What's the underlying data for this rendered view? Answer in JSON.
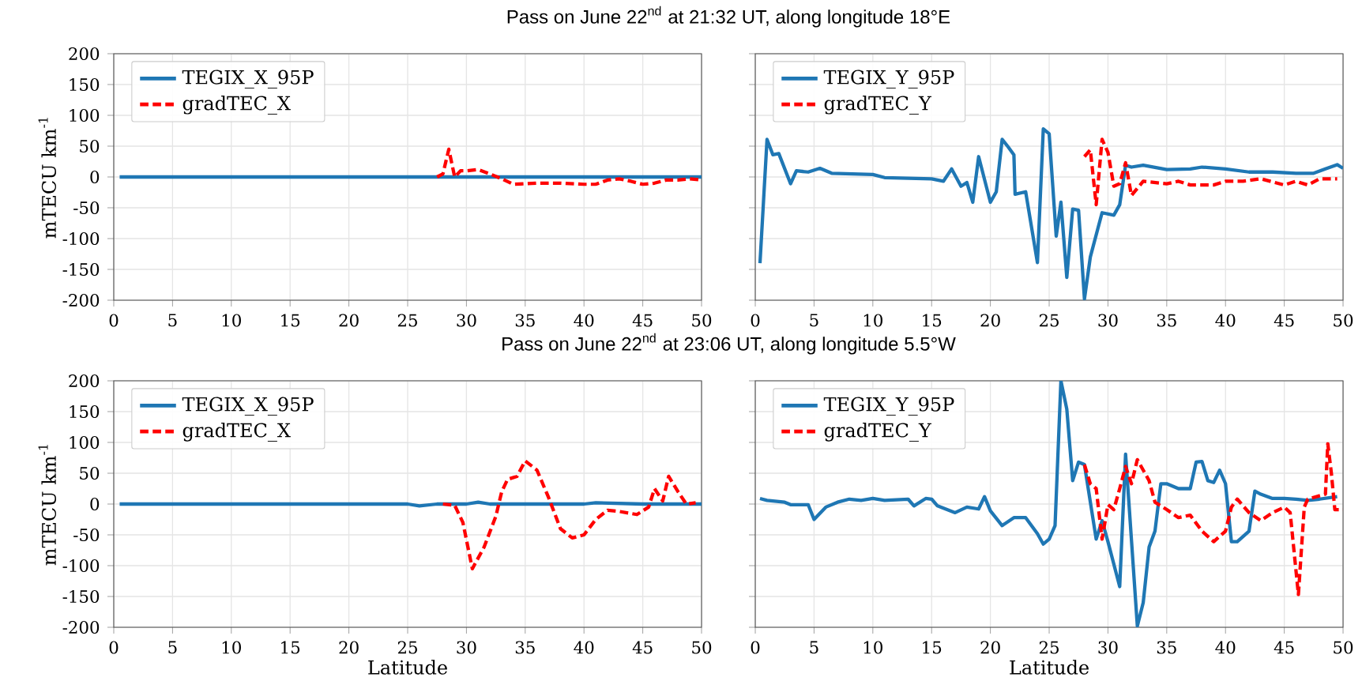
{
  "chart_data": [
    {
      "type": "line",
      "title": "Pass on June 22$^{nd}$ at 21:32 UT, along longitude 18°E",
      "ylabel": "mTECU km$^{-1}$",
      "xlim": [
        0,
        50
      ],
      "ylim": [
        -200,
        200
      ],
      "xticks": [
        0,
        5,
        10,
        15,
        20,
        25,
        30,
        35,
        40,
        45,
        50
      ],
      "yticks": [
        -200,
        -150,
        -100,
        -50,
        0,
        50,
        100,
        150,
        200
      ],
      "grid": true,
      "legend": "top left",
      "series": [
        {
          "name": "TEGIX_X_95P",
          "color": "#1f77b4",
          "line_style": "solid",
          "x": [
            0.5,
            5,
            10,
            15,
            20,
            25,
            27.5,
            30,
            35,
            40,
            45,
            48,
            50
          ],
          "values": [
            0,
            0,
            0,
            0,
            0,
            0,
            0,
            0,
            0,
            0,
            0,
            0,
            0
          ]
        },
        {
          "name": "gradTEC_X",
          "color": "#ff0000",
          "line_style": "dashed",
          "x": [
            27.5,
            28,
            28.5,
            29,
            29.5,
            30,
            31,
            32,
            33,
            34,
            36,
            38,
            40,
            41,
            42,
            43,
            44,
            45,
            46,
            47,
            48,
            49,
            50
          ],
          "values": [
            0,
            5,
            45,
            0,
            10,
            10,
            12,
            5,
            -3,
            -12,
            -10,
            -10,
            -12,
            -12,
            -5,
            -3,
            -7,
            -12,
            -10,
            -5,
            -5,
            -3,
            -5
          ]
        }
      ]
    },
    {
      "type": "line",
      "xlim": [
        0,
        50
      ],
      "ylim": [
        -200,
        200
      ],
      "xticks": [
        0,
        5,
        10,
        15,
        20,
        25,
        30,
        35,
        40,
        45,
        50
      ],
      "yticks": [
        -200,
        -150,
        -100,
        -50,
        0,
        50,
        100,
        150,
        200
      ],
      "grid": true,
      "legend": "top left",
      "tick_labels": "x",
      "series": [
        {
          "name": "TEGIX_Y_95P",
          "color": "#1f77b4",
          "line_style": "solid",
          "x": [
            0.4,
            1.0,
            1.5,
            2,
            3,
            3.5,
            4.5,
            5.5,
            6.5,
            10,
            11,
            15,
            16,
            16.7,
            17.5,
            18,
            18.5,
            19,
            20,
            20.5,
            21,
            21.5,
            22,
            22.1,
            23,
            24,
            24.5,
            25,
            25.6,
            26,
            26.5,
            27,
            27.5,
            28,
            28.5,
            29.5,
            30.5,
            31,
            31.5,
            32,
            33,
            35,
            37,
            38,
            40,
            42,
            44,
            46,
            47.5,
            48.5,
            49.5,
            50
          ],
          "values": [
            -140,
            61,
            36,
            38,
            -11,
            10,
            8,
            14,
            6,
            4,
            -1,
            -3,
            -7,
            13,
            -15,
            -9,
            -41,
            33,
            -41,
            -24,
            61,
            49,
            36,
            -28,
            -24,
            -139,
            78,
            70,
            -96,
            -41,
            -163,
            -52,
            -54,
            -198,
            -130,
            -58,
            -62,
            -45,
            19,
            16,
            19,
            12,
            13,
            16,
            13,
            8,
            8,
            6,
            6,
            13,
            20,
            14
          ]
        },
        {
          "name": "gradTEC_Y",
          "color": "#ff0000",
          "line_style": "dashed",
          "x": [
            28,
            28.5,
            29,
            29.5,
            30,
            30.5,
            31,
            31.5,
            32,
            33,
            35,
            36,
            37,
            39,
            40,
            41.5,
            43,
            45,
            46,
            47,
            48,
            49.5
          ],
          "values": [
            33,
            44,
            -45,
            61,
            40,
            -15,
            -11,
            23,
            -30,
            -7,
            -11,
            -7,
            -13,
            -13,
            -7,
            -7,
            -3,
            -13,
            -7,
            -13,
            -3,
            -3
          ]
        }
      ]
    },
    {
      "type": "line",
      "title": "Pass on June 22$^{nd}$ at 23:06 UT, along longitude 5.5°W",
      "xlabel": "Latitude",
      "ylabel": "mTECU km$^{-1}$",
      "xlim": [
        0,
        50
      ],
      "ylim": [
        -200,
        200
      ],
      "xticks": [
        0,
        5,
        10,
        15,
        20,
        25,
        30,
        35,
        40,
        45,
        50
      ],
      "yticks": [
        -200,
        -150,
        -100,
        -50,
        0,
        50,
        100,
        150,
        200
      ],
      "grid": true,
      "legend": "top left",
      "series": [
        {
          "name": "TEGIX_X_95P",
          "color": "#1f77b4",
          "line_style": "solid",
          "x": [
            0.5,
            5,
            10,
            15,
            20,
            25,
            26,
            27.5,
            30,
            31,
            32,
            35,
            40,
            41,
            45,
            50
          ],
          "values": [
            0,
            0,
            0,
            0,
            0,
            0,
            -3,
            0,
            0,
            3,
            0,
            0,
            0,
            2,
            0,
            0
          ]
        },
        {
          "name": "gradTEC_X",
          "color": "#ff0000",
          "line_style": "dashed",
          "x": [
            28,
            29,
            29.7,
            30.5,
            31.5,
            32.5,
            33,
            33.5,
            34.3,
            35,
            36,
            37,
            38,
            39,
            40,
            41,
            42,
            43,
            44.5,
            45.5,
            46,
            46.7,
            47.2,
            48,
            48.7,
            49.5
          ],
          "values": [
            0,
            -2,
            -30,
            -105,
            -70,
            -20,
            20,
            40,
            45,
            70,
            55,
            10,
            -40,
            -55,
            -50,
            -25,
            -10,
            -12,
            -17,
            -5,
            25,
            5,
            45,
            20,
            0,
            2
          ]
        }
      ]
    },
    {
      "type": "line",
      "xlabel": "Latitude",
      "xlim": [
        0,
        50
      ],
      "ylim": [
        -200,
        200
      ],
      "xticks": [
        0,
        5,
        10,
        15,
        20,
        25,
        30,
        35,
        40,
        45,
        50
      ],
      "yticks": [
        -200,
        -150,
        -100,
        -50,
        0,
        50,
        100,
        150,
        200
      ],
      "grid": true,
      "legend": "top left",
      "tick_labels": "x",
      "series": [
        {
          "name": "TEGIX_Y_95P",
          "color": "#1f77b4",
          "line_style": "solid",
          "x": [
            0.4,
            1,
            2.5,
            3,
            4.5,
            5,
            6,
            7,
            8,
            9,
            10,
            11,
            13,
            13.5,
            14.5,
            15,
            15.5,
            17,
            18,
            19,
            19.5,
            20,
            21,
            22,
            23,
            24,
            24.5,
            25,
            25.5,
            26,
            26.5,
            27,
            27.5,
            28,
            29,
            29.5,
            30,
            31,
            31.5,
            32.5,
            33,
            33.5,
            34,
            34.5,
            35,
            36,
            37,
            37.5,
            38,
            38.5,
            39,
            39.5,
            40,
            40.5,
            41,
            42,
            42.5,
            43,
            44,
            45,
            46,
            47,
            48,
            49.5
          ],
          "values": [
            9,
            6,
            3,
            -1,
            -1,
            -25,
            -5,
            3,
            8,
            6,
            9,
            6,
            8,
            -3,
            9,
            8,
            -3,
            -14,
            -5,
            -8,
            12,
            -11,
            -35,
            -22,
            -22,
            -48,
            -65,
            -57,
            -35,
            200,
            154,
            38,
            68,
            64,
            -57,
            -27,
            -61,
            -134,
            81,
            -198,
            -160,
            -70,
            -44,
            33,
            33,
            25,
            25,
            68,
            69,
            38,
            35,
            55,
            33,
            -61,
            -61,
            -44,
            21,
            16,
            9,
            9,
            8,
            6,
            8,
            12
          ]
        },
        {
          "name": "gradTEC_Y",
          "color": "#ff0000",
          "line_style": "dashed",
          "x": [
            28,
            28.5,
            29,
            29.5,
            30,
            30.5,
            31,
            31.5,
            32,
            32.5,
            33.5,
            34,
            35,
            36,
            37,
            38,
            39,
            40,
            40.5,
            41,
            42,
            43,
            44,
            45,
            45.5,
            46.2,
            46.7,
            47,
            48.5,
            48.7,
            49,
            49.3,
            50
          ],
          "values": [
            64,
            33,
            25,
            -57,
            -1,
            -9,
            25,
            61,
            33,
            72,
            38,
            3,
            -9,
            -22,
            -18,
            -44,
            -61,
            -44,
            -5,
            8,
            -14,
            -27,
            -14,
            -5,
            -14,
            -147,
            -5,
            8,
            16,
            98,
            51,
            -9,
            -9
          ]
        }
      ]
    }
  ]
}
